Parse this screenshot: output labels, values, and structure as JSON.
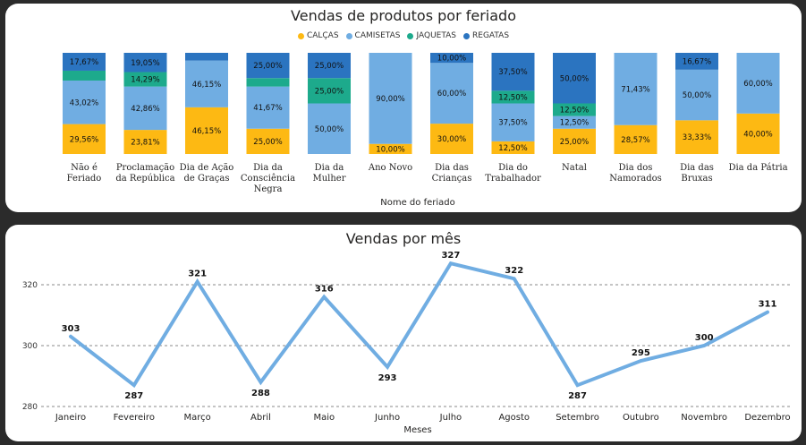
{
  "top_chart": {
    "title": "Vendas de produtos por feriado",
    "legend": [
      {
        "label": "CALÇAS",
        "color": "#fdb913"
      },
      {
        "label": "CAMISETAS",
        "color": "#70ade2"
      },
      {
        "label": "JAQUETAS",
        "color": "#1daa8c"
      },
      {
        "label": "REGATAS",
        "color": "#2b74c0"
      }
    ],
    "xlabel": "Nome do feriado"
  },
  "bottom_chart": {
    "title": "Vendas por mês",
    "xlabel": "Meses"
  },
  "chart_data": [
    {
      "type": "bar",
      "stacked": "100%",
      "title": "Vendas de produtos por feriado",
      "xlabel": "Nome do feriado",
      "ylabel": "",
      "categories": [
        [
          "Não é",
          "Feriado"
        ],
        [
          "Proclamação",
          "da República"
        ],
        [
          "Dia de Ação",
          "de Graças"
        ],
        [
          "Dia da",
          "Consciência",
          "Negra"
        ],
        [
          "Dia da",
          "Mulher"
        ],
        [
          "Ano Novo"
        ],
        [
          "Dia das",
          "Crianças"
        ],
        [
          "Dia do",
          "Trabalhador"
        ],
        [
          "Natal"
        ],
        [
          "Dia dos",
          "Namorados"
        ],
        [
          "Dia das",
          "Bruxas"
        ],
        [
          "Dia da Pátria"
        ]
      ],
      "series": [
        {
          "name": "CALÇAS",
          "color": "#fdb913",
          "values": [
            29.56,
            23.81,
            46.15,
            25.0,
            0,
            10.0,
            30.0,
            12.5,
            25.0,
            28.57,
            33.33,
            40.0
          ],
          "labels": [
            "29,56%",
            "23,81%",
            "46,15%",
            "25,00%",
            "",
            "10,00%",
            "30,00%",
            "12,50%",
            "25,00%",
            "28,57%",
            "33,33%",
            "40,00%"
          ]
        },
        {
          "name": "CAMISETAS",
          "color": "#70ade2",
          "values": [
            43.02,
            42.86,
            46.15,
            41.67,
            50.0,
            90.0,
            60.0,
            37.5,
            12.5,
            71.43,
            50.0,
            60.0
          ],
          "labels": [
            "43,02%",
            "42,86%",
            "46,15%",
            "41,67%",
            "50,00%",
            "90,00%",
            "60,00%",
            "37,50%",
            "12,50%",
            "71,43%",
            "50,00%",
            "60,00%"
          ]
        },
        {
          "name": "JAQUETAS",
          "color": "#1daa8c",
          "values": [
            9.75,
            14.29,
            0,
            8.33,
            25.0,
            0,
            0,
            12.5,
            12.5,
            0,
            0,
            0
          ],
          "labels": [
            "",
            "14,29%",
            "",
            "",
            "25,00%",
            "",
            "",
            "12,50%",
            "12,50%",
            "",
            "",
            ""
          ]
        },
        {
          "name": "REGATAS",
          "color": "#2b74c0",
          "values": [
            17.67,
            19.05,
            7.7,
            25.0,
            25.0,
            0,
            10.0,
            37.5,
            50.0,
            0,
            16.67,
            0
          ],
          "labels": [
            "17,67%",
            "19,05%",
            "",
            "25,00%",
            "25,00%",
            "",
            "10,00%",
            "37,50%",
            "50,00%",
            "",
            "16,67%",
            ""
          ]
        }
      ]
    },
    {
      "type": "line",
      "title": "Vendas por mês",
      "xlabel": "Meses",
      "ylabel": "",
      "x": [
        "Janeiro",
        "Fevereiro",
        "Março",
        "Abril",
        "Maio",
        "Junho",
        "Julho",
        "Agosto",
        "Setembro",
        "Outubro",
        "Novembro",
        "Dezembro"
      ],
      "values": [
        303,
        287,
        321,
        288,
        316,
        293,
        327,
        322,
        287,
        295,
        300,
        311
      ],
      "yticks": [
        280,
        300,
        320
      ],
      "ylim": [
        280,
        330
      ],
      "grid": true,
      "color": "#70ade2"
    }
  ]
}
